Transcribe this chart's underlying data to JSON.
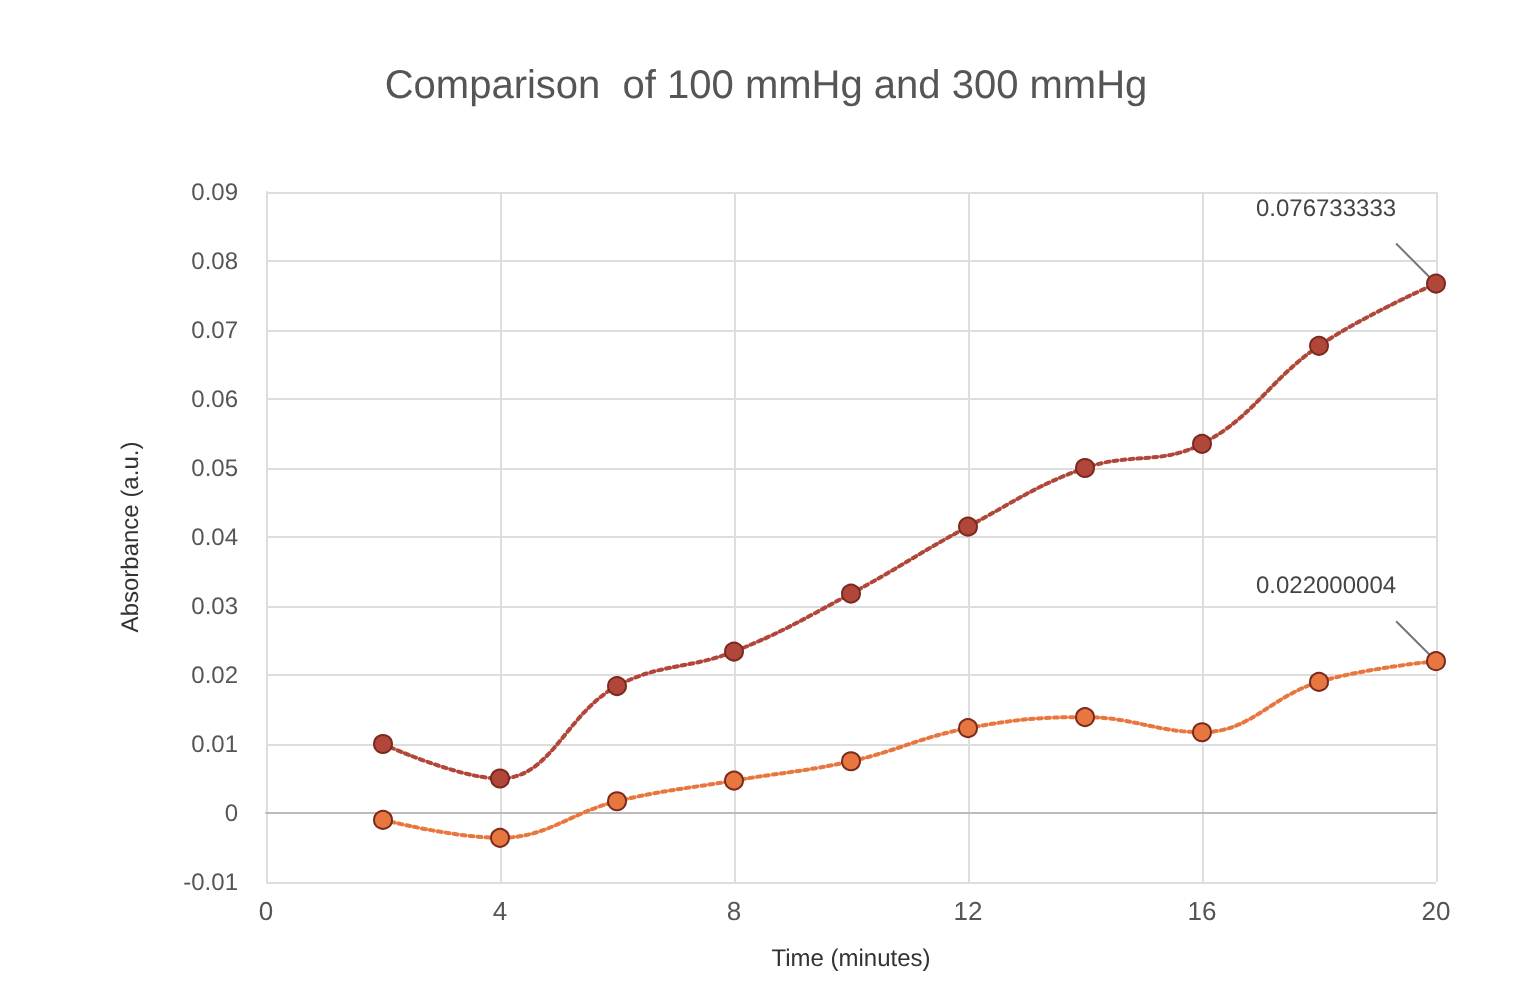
{
  "chart_data": {
    "type": "line",
    "title": "Comparison  of 100 mmHg and 300 mmHg",
    "xlabel": "Time (minutes)",
    "ylabel": "Absorbance (a.u.)",
    "x": [
      2,
      4,
      6,
      8,
      10,
      12,
      14,
      16,
      18,
      20
    ],
    "series": [
      {
        "color": "#b0473a",
        "values": [
          0.01,
          0.005,
          0.0184,
          0.0234,
          0.0318,
          0.0415,
          0.05,
          0.0535,
          0.0677,
          0.076733333
        ],
        "value_labels": [
          null,
          null,
          null,
          null,
          null,
          null,
          null,
          null,
          null,
          "0.076733333"
        ]
      },
      {
        "color": "#e8773f",
        "values": [
          -0.001,
          -0.0036,
          0.0017,
          0.0047,
          0.0075,
          0.0123,
          0.0139,
          0.0117,
          0.019,
          0.022000004
        ],
        "value_labels": [
          null,
          null,
          null,
          null,
          null,
          null,
          null,
          null,
          null,
          "0.022000004"
        ]
      }
    ],
    "xlim": [
      0,
      20
    ],
    "xticks": [
      0,
      4,
      8,
      12,
      16,
      20
    ],
    "ylim": [
      -0.01,
      0.09
    ],
    "yticks": [
      -0.01,
      0,
      0.01,
      0.02,
      0.03,
      0.04,
      0.05,
      0.06,
      0.07,
      0.08,
      0.09
    ],
    "grid": true,
    "marker": "circle",
    "line_style": "dotted"
  }
}
